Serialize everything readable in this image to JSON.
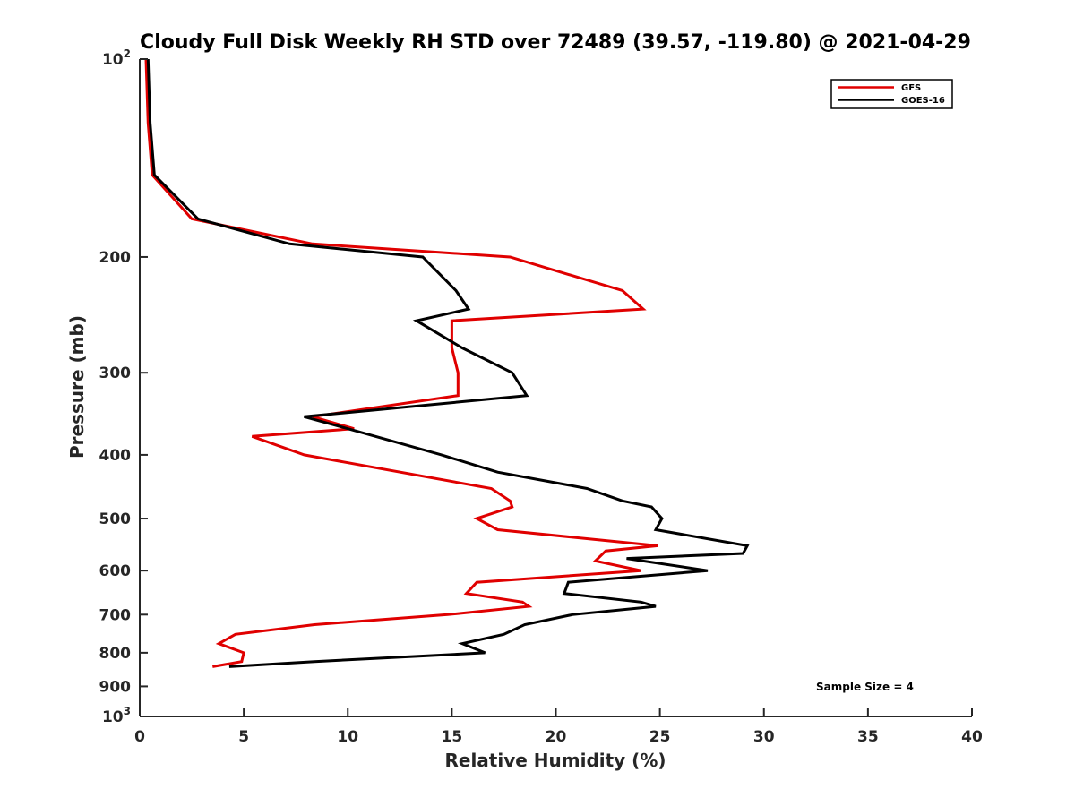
{
  "chart_data": {
    "type": "line",
    "title": "Cloudy Full Disk Weekly RH STD over 72489 (39.57, -119.80) @ 2021-04-29",
    "xlabel": "Relative Humidity (%)",
    "ylabel": "Pressure (mb)",
    "xlim": [
      0,
      40
    ],
    "ylim": [
      100,
      1000
    ],
    "y_scale": "log",
    "y_reversed": true,
    "grid": false,
    "legend_position": "top-right",
    "x_ticks": [
      "0",
      "5",
      "10",
      "15",
      "20",
      "25",
      "30",
      "35",
      "40"
    ],
    "y_ticks": [
      {
        "value": 100,
        "label": "10",
        "sup": "2"
      },
      {
        "value": 200,
        "label": "200",
        "sup": ""
      },
      {
        "value": 300,
        "label": "300",
        "sup": ""
      },
      {
        "value": 400,
        "label": "400",
        "sup": ""
      },
      {
        "value": 500,
        "label": "500",
        "sup": ""
      },
      {
        "value": 600,
        "label": "600",
        "sup": ""
      },
      {
        "value": 700,
        "label": "700",
        "sup": ""
      },
      {
        "value": 800,
        "label": "800",
        "sup": ""
      },
      {
        "value": 900,
        "label": "900",
        "sup": ""
      },
      {
        "value": 1000,
        "label": "10",
        "sup": "3"
      }
    ],
    "series": [
      {
        "name": "GFS",
        "color": "#e00000",
        "points": [
          [
            0.3,
            100
          ],
          [
            0.4,
            125
          ],
          [
            0.6,
            150
          ],
          [
            2.5,
            175
          ],
          [
            8.3,
            191
          ],
          [
            17.8,
            200
          ],
          [
            23.2,
            225
          ],
          [
            24.2,
            240
          ],
          [
            15.0,
            250
          ],
          [
            15.0,
            275
          ],
          [
            15.3,
            300
          ],
          [
            15.3,
            325
          ],
          [
            8.3,
            350
          ],
          [
            10.3,
            365
          ],
          [
            5.4,
            375
          ],
          [
            7.9,
            400
          ],
          [
            16.9,
            450
          ],
          [
            17.8,
            470
          ],
          [
            17.9,
            480
          ],
          [
            16.2,
            500
          ],
          [
            17.2,
            520
          ],
          [
            24.9,
            550
          ],
          [
            22.4,
            560
          ],
          [
            21.9,
            580
          ],
          [
            24.1,
            600
          ],
          [
            16.2,
            625
          ],
          [
            15.7,
            650
          ],
          [
            18.4,
            670
          ],
          [
            18.7,
            680
          ],
          [
            14.8,
            700
          ],
          [
            8.4,
            725
          ],
          [
            4.6,
            750
          ],
          [
            3.8,
            775
          ],
          [
            5.0,
            800
          ],
          [
            4.9,
            825
          ],
          [
            3.5,
            840
          ]
        ]
      },
      {
        "name": "GOES-16",
        "color": "#000000",
        "points": [
          [
            0.4,
            100
          ],
          [
            0.5,
            125
          ],
          [
            0.7,
            150
          ],
          [
            2.8,
            175
          ],
          [
            7.2,
            191
          ],
          [
            13.6,
            200
          ],
          [
            15.2,
            225
          ],
          [
            15.8,
            240
          ],
          [
            13.3,
            250
          ],
          [
            15.5,
            275
          ],
          [
            17.9,
            300
          ],
          [
            18.6,
            325
          ],
          [
            7.9,
            350
          ],
          [
            10.0,
            365
          ],
          [
            14.5,
            400
          ],
          [
            17.2,
            425
          ],
          [
            21.5,
            450
          ],
          [
            23.2,
            470
          ],
          [
            24.6,
            480
          ],
          [
            25.1,
            500
          ],
          [
            24.8,
            520
          ],
          [
            29.2,
            550
          ],
          [
            29.0,
            565
          ],
          [
            23.4,
            575
          ],
          [
            27.3,
            600
          ],
          [
            20.6,
            625
          ],
          [
            20.4,
            650
          ],
          [
            24.1,
            670
          ],
          [
            24.8,
            680
          ],
          [
            20.8,
            700
          ],
          [
            18.5,
            725
          ],
          [
            17.5,
            750
          ],
          [
            15.5,
            775
          ],
          [
            16.6,
            800
          ],
          [
            8.4,
            825
          ],
          [
            4.3,
            840
          ]
        ]
      }
    ],
    "annotations": [
      "Sample Size = 4"
    ]
  }
}
